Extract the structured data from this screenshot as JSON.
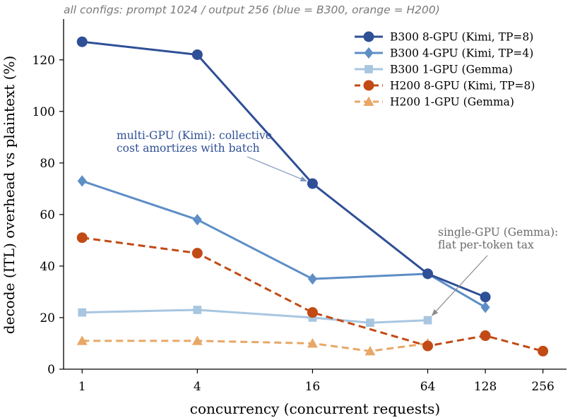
{
  "chart_data": {
    "type": "line",
    "subtitle": "all configs: prompt 1024 / output 256   (blue = B300, orange = H200)",
    "xlabel": "concurrency (concurrent requests)",
    "ylabel": "decode (ITL) overhead vs plaintext (%)",
    "x_scale": "log2",
    "xlim": [
      0.8,
      340
    ],
    "ylim": [
      0,
      135
    ],
    "x_ticks": [
      1,
      4,
      16,
      64,
      128,
      256
    ],
    "x_tick_labels": [
      "1",
      "4",
      "16",
      "64",
      "128",
      "256"
    ],
    "y_ticks": [
      0,
      20,
      40,
      60,
      80,
      100,
      120
    ],
    "y_tick_labels": [
      "0",
      "20",
      "40",
      "60",
      "80",
      "100",
      "120"
    ],
    "grid": false,
    "legend_position": "top-right",
    "series": [
      {
        "name": "B300 8-GPU (Kimi, TP=8)",
        "color": "#2f4f96",
        "marker": "circle",
        "dash": "solid",
        "x": [
          1,
          4,
          16,
          64,
          128
        ],
        "y": [
          127,
          122,
          72,
          37,
          28
        ]
      },
      {
        "name": "B300 4-GPU (Kimi, TP=4)",
        "color": "#5d8ec6",
        "marker": "diamond",
        "dash": "solid",
        "x": [
          1,
          4,
          16,
          64,
          128
        ],
        "y": [
          73,
          58,
          35,
          37,
          24
        ]
      },
      {
        "name": "B300 1-GPU (Gemma)",
        "color": "#a8c6e0",
        "marker": "square",
        "dash": "solid",
        "x": [
          1,
          4,
          16,
          32,
          64
        ],
        "y": [
          22,
          23,
          20,
          18,
          19
        ]
      },
      {
        "name": "H200 8-GPU (Kimi, TP=8)",
        "color": "#c24a14",
        "marker": "circle",
        "dash": "dashed",
        "x": [
          1,
          4,
          16,
          64,
          128,
          256
        ],
        "y": [
          51,
          45,
          22,
          9,
          13,
          7
        ]
      },
      {
        "name": "H200 1-GPU (Gemma)",
        "color": "#e8a766",
        "marker": "triangle",
        "dash": "dashed",
        "x": [
          1,
          4,
          16,
          32,
          64
        ],
        "y": [
          11,
          11,
          10,
          7,
          10
        ]
      }
    ],
    "annotations": [
      {
        "lines": [
          "multi-GPU (Kimi): collective",
          "cost amortizes with batch"
        ],
        "color": "#2f4f96",
        "arrow_to": {
          "x": 16,
          "y": 72
        }
      },
      {
        "lines": [
          "single-GPU (Gemma):",
          "flat per-token tax"
        ],
        "color": "#6b6b6b",
        "arrow_to": {
          "x": 64,
          "y": 19
        }
      }
    ]
  }
}
